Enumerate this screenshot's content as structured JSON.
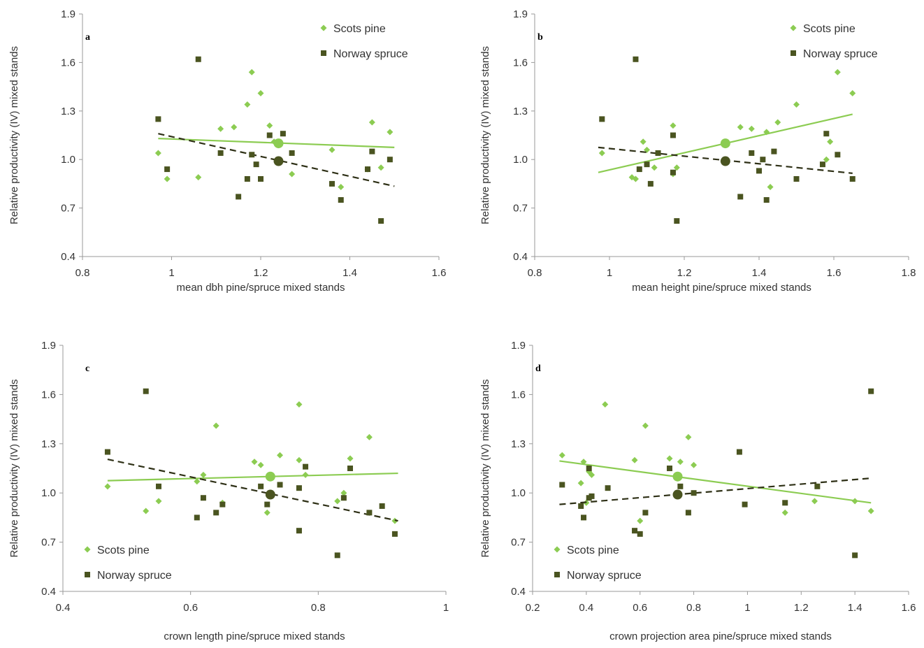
{
  "colors": {
    "pine": "#8ccc52",
    "spruce": "#4a5420",
    "axis": "#9a9a9a",
    "text": "#333333"
  },
  "legend": {
    "pine_label": "Scots pine",
    "spruce_label": "Norway spruce"
  },
  "chart_data": [
    {
      "type": "scatter",
      "panel": "a",
      "xlabel": "mean dbh pine/spruce mixed stands",
      "ylabel": "Relative productivity (IV) mixed stands",
      "xlim": [
        0.8,
        1.6
      ],
      "ylim": [
        0.4,
        1.9
      ],
      "xticks": [
        "0.8",
        "1",
        "1.2",
        "1.4",
        "1.6"
      ],
      "yticks": [
        "0.4",
        "0.7",
        "1.0",
        "1.3",
        "1.6",
        "1.9"
      ],
      "legend_position": "top-right",
      "series": [
        {
          "name": "Scots pine",
          "marker": "diamond",
          "points": [
            [
              0.97,
              1.04
            ],
            [
              0.99,
              0.88
            ],
            [
              1.06,
              0.89
            ],
            [
              1.11,
              1.19
            ],
            [
              1.14,
              1.2
            ],
            [
              1.17,
              1.34
            ],
            [
              1.18,
              1.54
            ],
            [
              1.2,
              1.41
            ],
            [
              1.22,
              1.21
            ],
            [
              1.23,
              1.11
            ],
            [
              1.27,
              0.91
            ],
            [
              1.36,
              1.06
            ],
            [
              1.38,
              0.83
            ],
            [
              1.44,
              0.94
            ],
            [
              1.45,
              1.23
            ],
            [
              1.47,
              0.95
            ],
            [
              1.49,
              1.17
            ]
          ],
          "mean": [
            1.24,
            1.1
          ],
          "trend": [
            [
              0.97,
              1.13
            ],
            [
              1.5,
              1.075
            ]
          ]
        },
        {
          "name": "Norway spruce",
          "marker": "square",
          "points": [
            [
              0.97,
              1.25
            ],
            [
              0.99,
              0.94
            ],
            [
              1.06,
              1.62
            ],
            [
              1.11,
              1.04
            ],
            [
              1.15,
              0.77
            ],
            [
              1.17,
              0.88
            ],
            [
              1.18,
              1.03
            ],
            [
              1.19,
              0.97
            ],
            [
              1.2,
              0.88
            ],
            [
              1.22,
              1.15
            ],
            [
              1.25,
              1.16
            ],
            [
              1.27,
              1.04
            ],
            [
              1.36,
              0.85
            ],
            [
              1.38,
              0.75
            ],
            [
              1.44,
              0.94
            ],
            [
              1.45,
              1.05
            ],
            [
              1.47,
              0.62
            ],
            [
              1.49,
              1.0
            ]
          ],
          "mean": [
            1.24,
            0.99
          ],
          "trend": [
            [
              0.97,
              1.16
            ],
            [
              1.5,
              0.835
            ]
          ]
        }
      ]
    },
    {
      "type": "scatter",
      "panel": "b",
      "xlabel": "mean height pine/spruce mixed stands",
      "ylabel": "Relative productivity (IV) mixed stands",
      "xlim": [
        0.8,
        1.8
      ],
      "ylim": [
        0.4,
        1.9
      ],
      "xticks": [
        "0.8",
        "1",
        "1.2",
        "1.4",
        "1.6",
        "1.8"
      ],
      "yticks": [
        "0.4",
        "0.7",
        "1.0",
        "1.3",
        "1.6",
        "1.9"
      ],
      "legend_position": "top-right",
      "series": [
        {
          "name": "Scots pine",
          "marker": "diamond",
          "points": [
            [
              0.98,
              1.04
            ],
            [
              1.06,
              0.89
            ],
            [
              1.07,
              0.88
            ],
            [
              1.09,
              1.11
            ],
            [
              1.1,
              1.06
            ],
            [
              1.12,
              0.95
            ],
            [
              1.17,
              0.91
            ],
            [
              1.17,
              1.21
            ],
            [
              1.18,
              0.95
            ],
            [
              1.35,
              1.2
            ],
            [
              1.38,
              1.19
            ],
            [
              1.42,
              1.17
            ],
            [
              1.43,
              0.83
            ],
            [
              1.45,
              1.23
            ],
            [
              1.5,
              1.34
            ],
            [
              1.58,
              1.0
            ],
            [
              1.59,
              1.11
            ],
            [
              1.61,
              1.54
            ],
            [
              1.65,
              1.41
            ]
          ],
          "mean": [
            1.31,
            1.1
          ],
          "trend": [
            [
              0.97,
              0.92
            ],
            [
              1.65,
              1.28
            ]
          ]
        },
        {
          "name": "Norway spruce",
          "marker": "square",
          "points": [
            [
              0.98,
              1.25
            ],
            [
              1.07,
              1.62
            ],
            [
              1.08,
              0.94
            ],
            [
              1.1,
              0.97
            ],
            [
              1.11,
              0.85
            ],
            [
              1.13,
              1.04
            ],
            [
              1.17,
              0.92
            ],
            [
              1.17,
              1.15
            ],
            [
              1.18,
              0.62
            ],
            [
              1.35,
              0.77
            ],
            [
              1.38,
              1.04
            ],
            [
              1.4,
              0.93
            ],
            [
              1.41,
              1.0
            ],
            [
              1.42,
              0.75
            ],
            [
              1.44,
              1.05
            ],
            [
              1.5,
              0.88
            ],
            [
              1.57,
              0.97
            ],
            [
              1.58,
              1.16
            ],
            [
              1.61,
              1.03
            ],
            [
              1.65,
              0.88
            ]
          ],
          "mean": [
            1.31,
            0.99
          ],
          "trend": [
            [
              0.97,
              1.075
            ],
            [
              1.65,
              0.915
            ]
          ]
        }
      ]
    },
    {
      "type": "scatter",
      "panel": "c",
      "xlabel": "crown length pine/spruce mixed stands",
      "ylabel": "Relative productivity (IV) mixed stands",
      "xlim": [
        0.4,
        1.0
      ],
      "ylim": [
        0.4,
        1.9
      ],
      "xticks": [
        "0.4",
        "0.6",
        "0.8",
        "1"
      ],
      "yticks": [
        "0.4",
        "0.7",
        "1.0",
        "1.3",
        "1.6",
        "1.9"
      ],
      "legend_position": "bottom-left",
      "series": [
        {
          "name": "Scots pine",
          "marker": "diamond",
          "points": [
            [
              0.47,
              1.04
            ],
            [
              0.53,
              0.89
            ],
            [
              0.55,
              0.95
            ],
            [
              0.61,
              1.07
            ],
            [
              0.62,
              1.11
            ],
            [
              0.64,
              1.41
            ],
            [
              0.65,
              0.94
            ],
            [
              0.7,
              1.19
            ],
            [
              0.71,
              1.17
            ],
            [
              0.72,
              0.88
            ],
            [
              0.74,
              1.23
            ],
            [
              0.77,
              1.54
            ],
            [
              0.77,
              1.2
            ],
            [
              0.78,
              1.11
            ],
            [
              0.83,
              0.95
            ],
            [
              0.84,
              1.0
            ],
            [
              0.85,
              1.21
            ],
            [
              0.88,
              1.34
            ],
            [
              0.92,
              0.83
            ]
          ],
          "mean": [
            0.725,
            1.1
          ],
          "trend": [
            [
              0.47,
              1.075
            ],
            [
              0.925,
              1.12
            ]
          ]
        },
        {
          "name": "Norway spruce",
          "marker": "square",
          "points": [
            [
              0.47,
              1.25
            ],
            [
              0.53,
              1.62
            ],
            [
              0.55,
              1.04
            ],
            [
              0.61,
              0.85
            ],
            [
              0.62,
              0.97
            ],
            [
              0.64,
              0.88
            ],
            [
              0.65,
              0.93
            ],
            [
              0.71,
              1.04
            ],
            [
              0.72,
              0.93
            ],
            [
              0.74,
              1.05
            ],
            [
              0.77,
              0.77
            ],
            [
              0.77,
              1.03
            ],
            [
              0.78,
              1.16
            ],
            [
              0.83,
              0.62
            ],
            [
              0.84,
              0.97
            ],
            [
              0.85,
              1.15
            ],
            [
              0.88,
              0.88
            ],
            [
              0.9,
              0.92
            ],
            [
              0.92,
              0.75
            ]
          ],
          "mean": [
            0.725,
            0.99
          ],
          "trend": [
            [
              0.47,
              1.205
            ],
            [
              0.925,
              0.83
            ]
          ]
        }
      ]
    },
    {
      "type": "scatter",
      "panel": "d",
      "xlabel": "crown projection area pine/spruce mixed stands",
      "ylabel": "Relative productivity (IV) mixed stands",
      "xlim": [
        0.2,
        1.6
      ],
      "ylim": [
        0.4,
        1.9
      ],
      "xticks": [
        "0.2",
        "0.4",
        "0.6",
        "0.8",
        "1",
        "1.2",
        "1.4",
        "1.6"
      ],
      "yticks": [
        "0.4",
        "0.7",
        "1.0",
        "1.3",
        "1.6",
        "1.9"
      ],
      "legend_position": "bottom-left",
      "series": [
        {
          "name": "Scots pine",
          "marker": "diamond",
          "points": [
            [
              0.31,
              1.23
            ],
            [
              0.38,
              1.06
            ],
            [
              0.39,
              1.19
            ],
            [
              0.4,
              0.94
            ],
            [
              0.41,
              1.13
            ],
            [
              0.42,
              1.11
            ],
            [
              0.47,
              1.54
            ],
            [
              0.58,
              1.2
            ],
            [
              0.6,
              0.83
            ],
            [
              0.62,
              1.41
            ],
            [
              0.71,
              1.21
            ],
            [
              0.75,
              1.19
            ],
            [
              0.78,
              1.34
            ],
            [
              0.8,
              1.17
            ],
            [
              1.14,
              0.88
            ],
            [
              1.25,
              0.95
            ],
            [
              1.4,
              0.95
            ],
            [
              1.46,
              0.89
            ]
          ],
          "mean": [
            0.74,
            1.1
          ],
          "trend": [
            [
              0.3,
              1.195
            ],
            [
              1.46,
              0.94
            ]
          ]
        },
        {
          "name": "Norway spruce",
          "marker": "square",
          "points": [
            [
              0.31,
              1.05
            ],
            [
              0.38,
              0.92
            ],
            [
              0.39,
              0.85
            ],
            [
              0.41,
              0.97
            ],
            [
              0.42,
              0.98
            ],
            [
              0.41,
              1.15
            ],
            [
              0.48,
              1.03
            ],
            [
              0.58,
              0.77
            ],
            [
              0.6,
              0.75
            ],
            [
              0.62,
              0.88
            ],
            [
              0.71,
              1.15
            ],
            [
              0.75,
              1.04
            ],
            [
              0.78,
              0.88
            ],
            [
              0.8,
              1.0
            ],
            [
              0.97,
              1.25
            ],
            [
              0.99,
              0.93
            ],
            [
              1.14,
              0.94
            ],
            [
              1.26,
              1.04
            ],
            [
              1.4,
              0.62
            ],
            [
              1.46,
              1.62
            ]
          ],
          "mean": [
            0.74,
            0.99
          ],
          "trend": [
            [
              0.3,
              0.93
            ],
            [
              1.46,
              1.09
            ]
          ]
        }
      ]
    }
  ]
}
